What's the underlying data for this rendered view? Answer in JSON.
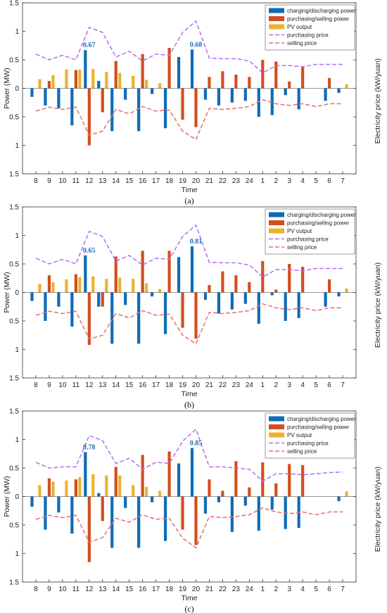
{
  "chart_data": [
    {
      "type": "bar",
      "panel_label": "(a)",
      "categories": [
        "8",
        "9",
        "10",
        "11",
        "12",
        "13",
        "14",
        "15",
        "16",
        "17",
        "18",
        "19",
        "20",
        "21",
        "22",
        "23",
        "24",
        "1",
        "2",
        "3",
        "4",
        "5",
        "6",
        "7"
      ],
      "xlabel": "Time",
      "ylabel": "Power (MW)",
      "y2label": "Electricity price (kW/yuan)",
      "ytick_labels": [
        "1.5",
        "1",
        "0.5",
        "0",
        "0.5",
        "1",
        "1.5"
      ],
      "ylim": [
        -1.5,
        1.5
      ],
      "legend_position": "top-right",
      "legend": [
        "charging/discharging power",
        "purchasing/selling power",
        "PV output",
        "purchasing price",
        "selling price"
      ],
      "colors": {
        "charging": "#0e6cb7",
        "purchasing": "#d24e1f",
        "pv": "#ecb22e",
        "purchasing_price": "#b46df2",
        "selling_price": "#ea6d6d"
      },
      "series": [
        {
          "name": "charging/discharging power",
          "values": [
            -0.15,
            -0.3,
            -0.35,
            -0.65,
            0.67,
            0.13,
            -0.75,
            -0.2,
            -0.75,
            -0.1,
            -0.7,
            0.55,
            0.68,
            -0.2,
            -0.3,
            -0.25,
            -0.22,
            -0.5,
            -0.47,
            -0.12,
            -0.37,
            0,
            -0.22,
            -0.08
          ]
        },
        {
          "name": "purchasing/selling power",
          "values": [
            0,
            0.13,
            0,
            0.32,
            -1.0,
            -0.42,
            0.48,
            0,
            0.6,
            0,
            0.71,
            -0.55,
            -0.68,
            0.2,
            0.3,
            0.24,
            0.2,
            0.5,
            0.47,
            0.12,
            0.37,
            0,
            0.18,
            0
          ]
        },
        {
          "name": "PV output",
          "values": [
            0.16,
            0.23,
            0.33,
            0.33,
            0.34,
            0.29,
            0.27,
            0.22,
            0.15,
            0.09,
            0,
            0,
            0,
            0,
            0,
            0,
            0,
            0,
            0,
            0,
            0,
            0,
            0,
            0.07
          ]
        },
        {
          "name": "purchasing price",
          "values": [
            0.6,
            0.5,
            0.58,
            0.5,
            1.07,
            0.98,
            0.55,
            0.65,
            0.48,
            0.6,
            0.58,
            0.98,
            1.18,
            0.53,
            0.52,
            0.52,
            0.48,
            0.27,
            0.4,
            0.4,
            0.38,
            0.42,
            0.42,
            0.42
          ]
        },
        {
          "name": "selling price",
          "values": [
            -0.4,
            -0.33,
            -0.37,
            -0.33,
            -0.82,
            -0.75,
            -0.37,
            -0.45,
            -0.32,
            -0.4,
            -0.38,
            -0.75,
            -0.9,
            -0.35,
            -0.37,
            -0.35,
            -0.32,
            -0.2,
            -0.27,
            -0.3,
            -0.27,
            -0.32,
            -0.27,
            -0.27
          ]
        }
      ],
      "annotations": [
        {
          "category": "12",
          "value": 0.67,
          "text": "0.67"
        },
        {
          "category": "20",
          "value": 0.68,
          "text": "0.68"
        }
      ]
    },
    {
      "type": "bar",
      "panel_label": "(b)",
      "categories": [
        "8",
        "9",
        "10",
        "11",
        "12",
        "13",
        "14",
        "15",
        "16",
        "17",
        "18",
        "19",
        "20",
        "21",
        "22",
        "23",
        "24",
        "1",
        "2",
        "3",
        "4",
        "5",
        "6",
        "7"
      ],
      "xlabel": "Time",
      "ylabel": "Power (MW)",
      "y2label": "Electricity price (kW/yuan)",
      "ytick_labels": [
        "1.5",
        "1",
        "0.5",
        "0",
        "0.5",
        "1",
        "1.5"
      ],
      "ylim": [
        -1.5,
        1.5
      ],
      "legend_position": "top-right",
      "legend": [
        "charging/discharging power",
        "purchasing/selling power",
        "PV output",
        "purchasing price",
        "selling price"
      ],
      "colors": {
        "charging": "#0e6cb7",
        "purchasing": "#d24e1f",
        "pv": "#ecb22e",
        "purchasing_price": "#b46df2",
        "selling_price": "#ea6d6d"
      },
      "series": [
        {
          "name": "charging/discharging power",
          "values": [
            -0.15,
            -0.5,
            -0.25,
            -0.6,
            0.65,
            -0.25,
            -0.9,
            -0.22,
            -0.9,
            -0.07,
            -0.73,
            0.62,
            0.81,
            -0.13,
            -0.37,
            -0.3,
            -0.2,
            -0.55,
            -0.05,
            -0.5,
            -0.45,
            0,
            -0.25,
            -0.07
          ]
        },
        {
          "name": "purchasing/selling power",
          "values": [
            0,
            0.3,
            0,
            0.32,
            -0.92,
            -0.25,
            0.63,
            0,
            0.73,
            0,
            0.73,
            -0.62,
            -0.81,
            0.13,
            0.37,
            0.3,
            0.18,
            0.55,
            0.05,
            0.5,
            0.45,
            0,
            0.23,
            0
          ]
        },
        {
          "name": "PV output",
          "values": [
            0.15,
            0.18,
            0.23,
            0.27,
            0.28,
            0.24,
            0.26,
            0.24,
            0.16,
            0.06,
            0,
            0,
            0,
            0,
            0,
            0,
            0,
            0,
            0,
            0,
            0,
            0,
            0,
            0.07
          ]
        },
        {
          "name": "purchasing price",
          "values": [
            0.6,
            0.5,
            0.58,
            0.5,
            1.07,
            0.98,
            0.55,
            0.65,
            0.48,
            0.6,
            0.58,
            0.98,
            1.18,
            0.53,
            0.52,
            0.52,
            0.48,
            0.27,
            0.4,
            0.4,
            0.38,
            0.42,
            0.42,
            0.42
          ]
        },
        {
          "name": "selling price",
          "values": [
            -0.4,
            -0.33,
            -0.37,
            -0.33,
            -0.82,
            -0.75,
            -0.37,
            -0.45,
            -0.32,
            -0.4,
            -0.38,
            -0.75,
            -0.9,
            -0.35,
            -0.37,
            -0.35,
            -0.32,
            -0.2,
            -0.27,
            -0.3,
            -0.27,
            -0.32,
            -0.27,
            -0.27
          ]
        }
      ],
      "annotations": [
        {
          "category": "12",
          "value": 0.65,
          "text": "0.65"
        },
        {
          "category": "20",
          "value": 0.81,
          "text": "0.81"
        }
      ]
    },
    {
      "type": "bar",
      "panel_label": "(c)",
      "categories": [
        "8",
        "9",
        "10",
        "11",
        "12",
        "13",
        "14",
        "15",
        "16",
        "17",
        "18",
        "19",
        "20",
        "21",
        "22",
        "23",
        "24",
        "1",
        "2",
        "3",
        "4",
        "5",
        "6",
        "7"
      ],
      "xlabel": "Time",
      "ylabel": "Power (MW)",
      "y2label": "Electricity price (kW/yuan)",
      "ytick_labels": [
        "1.5",
        "1",
        "0.5",
        "0",
        "0.5",
        "1",
        "1.5"
      ],
      "ylim": [
        -1.5,
        1.5
      ],
      "legend_position": "top-right",
      "legend": [
        "charging/discharging power",
        "purchasing/selling power",
        "PV output",
        "purchasing price",
        "selling price"
      ],
      "colors": {
        "charging": "#0e6cb7",
        "purchasing": "#d24e1f",
        "pv": "#ecb22e",
        "purchasing_price": "#b46df2",
        "selling_price": "#ea6d6d"
      },
      "series": [
        {
          "name": "charging/discharging power",
          "values": [
            -0.18,
            -0.58,
            -0.28,
            -0.65,
            0.78,
            0.06,
            -0.9,
            -0.2,
            -0.9,
            -0.1,
            -0.78,
            0.58,
            0.85,
            -0.3,
            -0.1,
            -0.62,
            -0.16,
            -0.6,
            -0.23,
            -0.57,
            -0.55,
            0,
            0,
            -0.08
          ]
        },
        {
          "name": "purchasing/selling power",
          "values": [
            0,
            0.32,
            0,
            0.3,
            -1.15,
            -0.43,
            0.52,
            0,
            0.73,
            0,
            0.79,
            -0.58,
            -0.85,
            0.3,
            0.1,
            0.62,
            0.16,
            0.6,
            0.23,
            0.57,
            0.55,
            0,
            0,
            0
          ]
        },
        {
          "name": "PV output",
          "values": [
            0.2,
            0.26,
            0.28,
            0.34,
            0.39,
            0.37,
            0.37,
            0.2,
            0.17,
            0.1,
            0,
            0,
            0,
            0,
            0,
            0,
            0,
            0,
            0,
            0,
            0,
            0,
            0,
            0.09
          ]
        },
        {
          "name": "purchasing price",
          "values": [
            0.6,
            0.5,
            0.52,
            0.52,
            1.07,
            0.98,
            0.58,
            0.67,
            0.48,
            0.6,
            0.58,
            0.97,
            1.18,
            0.52,
            0.52,
            0.5,
            0.48,
            0.27,
            0.4,
            0.4,
            0.38,
            0.4,
            0.42,
            0.43
          ]
        },
        {
          "name": "selling price",
          "values": [
            -0.4,
            -0.33,
            -0.37,
            -0.33,
            -0.8,
            -0.72,
            -0.38,
            -0.45,
            -0.32,
            -0.4,
            -0.38,
            -0.73,
            -0.9,
            -0.35,
            -0.37,
            -0.35,
            -0.32,
            -0.2,
            -0.27,
            -0.3,
            -0.27,
            -0.32,
            -0.27,
            -0.27
          ]
        }
      ],
      "annotations": [
        {
          "category": "12",
          "value": 0.78,
          "text": "0.78"
        },
        {
          "category": "20",
          "value": 0.85,
          "text": "0.85"
        }
      ]
    }
  ]
}
